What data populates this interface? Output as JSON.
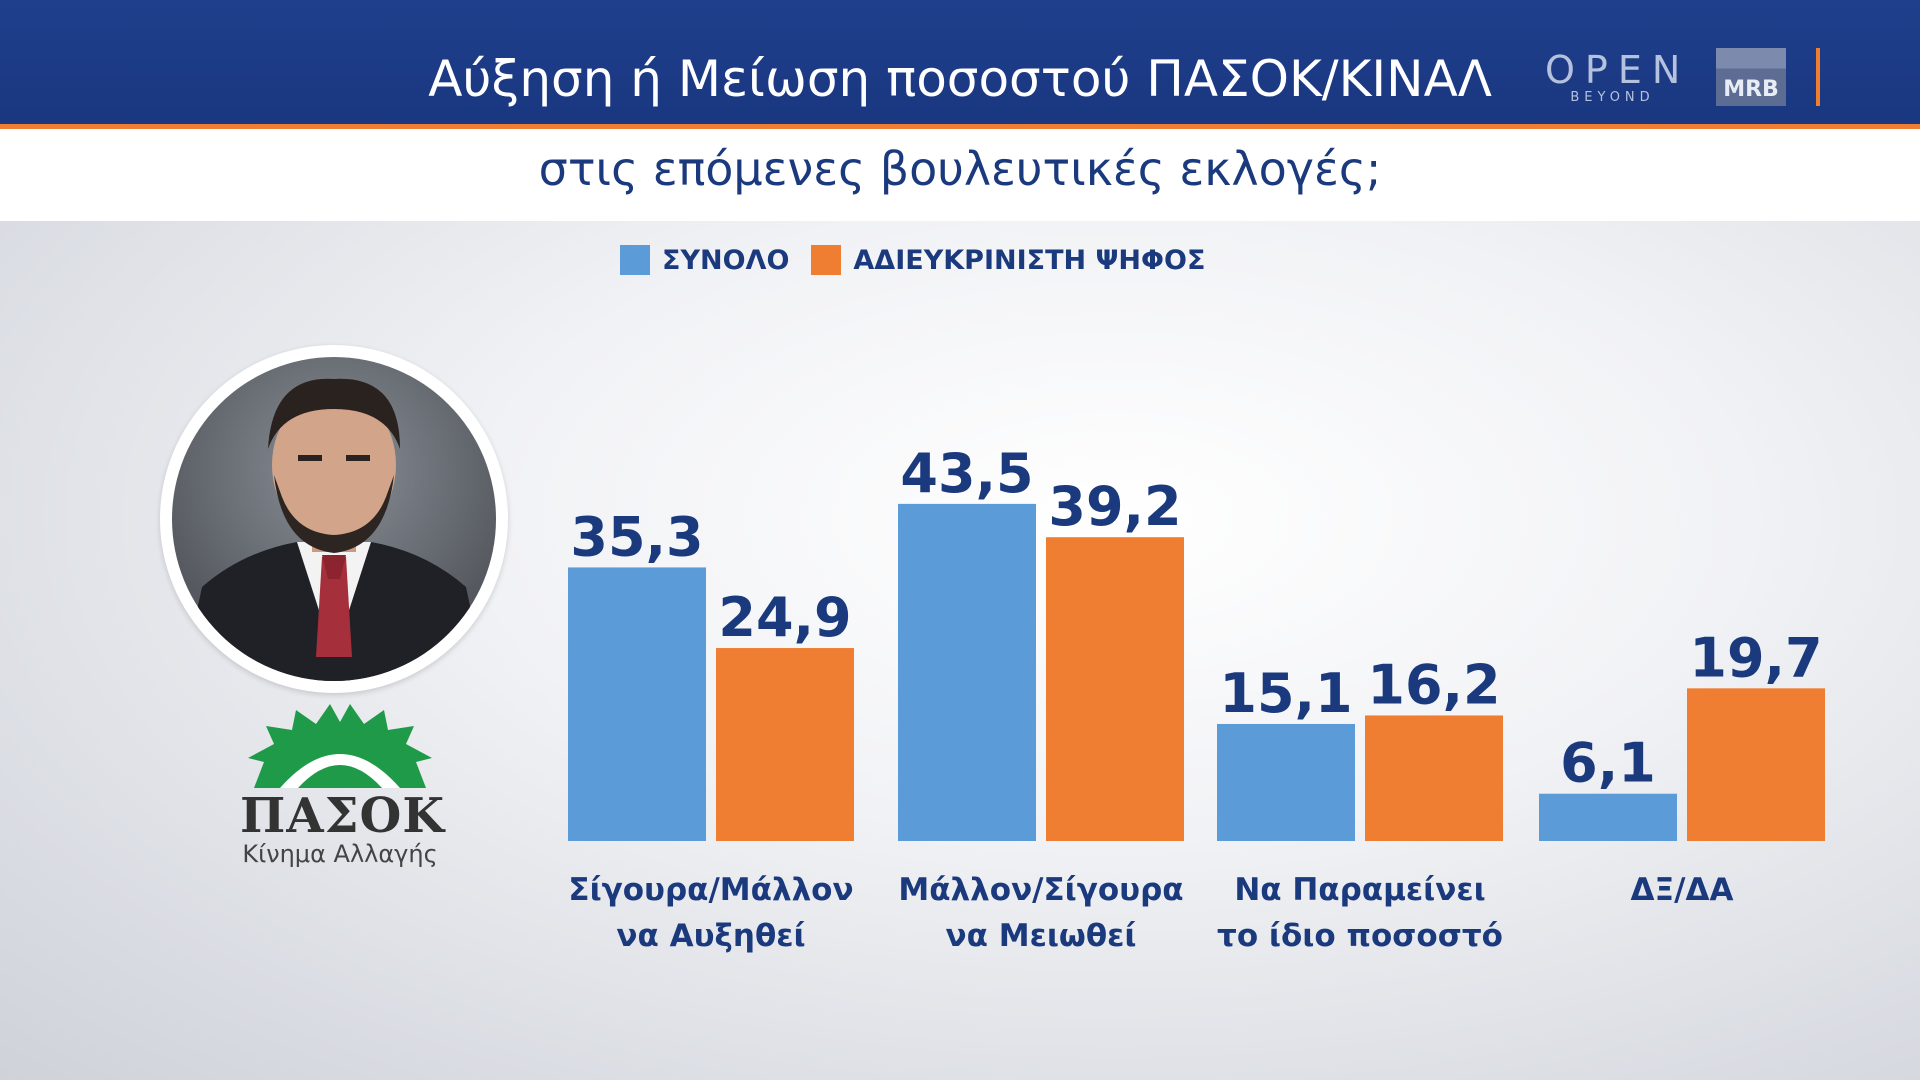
{
  "header": {
    "title": "Αύξηση ή Μείωση ποσοστού ΠΑΣΟΚ/ΚΙΝΑΛ",
    "subtitle": "στις επόμενες βουλευτικές εκλογές;"
  },
  "branding": {
    "open_logo": "OPEN",
    "open_sub": "BEYOND",
    "mrb_logo": "MRB"
  },
  "party": {
    "name": "ΠΑΣΟΚ",
    "tagline": "Κίνημα Αλλαγής"
  },
  "colors": {
    "header_bg": "#1f3f8c",
    "accent": "#ef7e33",
    "text_dark_blue": "#1b3a7e",
    "series_total": "#5b9bd8",
    "series_undecided": "#ef7e33",
    "pasok_green": "#1f9a48"
  },
  "icons": [
    "person-photo",
    "pasok-sun-logo"
  ],
  "chart_data": {
    "type": "bar",
    "title": "Αύξηση ή Μείωση ποσοστού ΠΑΣΟΚ/ΚΙΝΑΛ",
    "subtitle": "στις επόμενες βουλευτικές εκλογές;",
    "categories": [
      [
        "Σίγουρα/Μάλλον",
        "να Αυξηθεί"
      ],
      [
        "Μάλλον/Σίγουρα",
        "να Μειωθεί"
      ],
      [
        "Να Παραμείνει",
        "το ίδιο ποσοστό"
      ],
      [
        "ΔΞ/ΔΑ"
      ]
    ],
    "series": [
      {
        "name": "ΣΥΝΟΛΟ",
        "values": [
          35.3,
          43.5,
          15.1,
          6.1
        ],
        "labels": [
          "35,3",
          "43,5",
          "15,1",
          "6,1"
        ],
        "color": "#5b9bd8"
      },
      {
        "name": "ΑΔΙΕΥΚΡΙΝΙΣΤΗ ΨΗΦΟΣ",
        "values": [
          24.9,
          39.2,
          16.2,
          19.7
        ],
        "labels": [
          "24,9",
          "39,2",
          "16,2",
          "19,7"
        ],
        "color": "#ef7e33"
      }
    ],
    "xlabel": "",
    "ylabel": "",
    "ylim": [
      0,
      50
    ],
    "grid": false,
    "legend": "top"
  }
}
